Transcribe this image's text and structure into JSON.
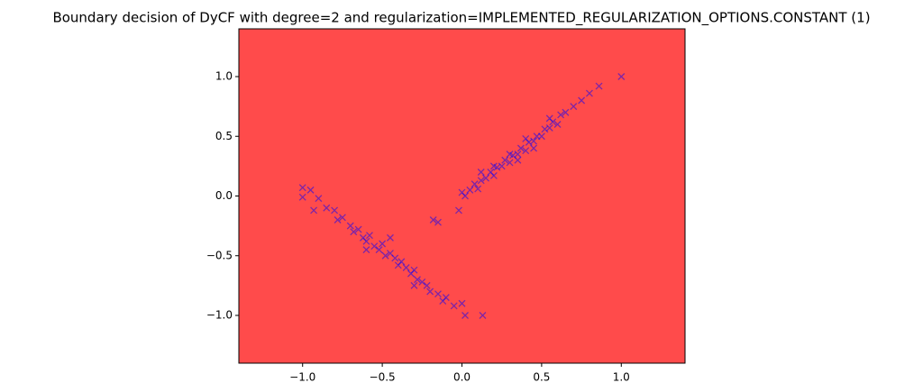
{
  "chart_data": {
    "type": "scatter",
    "title": "Boundary decision of DyCF with degree=2 and regularization=IMPLEMENTED_REGULARIZATION_OPTIONS.CONSTANT (1)",
    "background": "#ff4b4b",
    "marker": "x",
    "alpha": 0.5,
    "xlim": [
      -1.4,
      1.4
    ],
    "ylim": [
      -1.4,
      1.4
    ],
    "xticks": [
      {
        "value": -1,
        "label": "−1.0"
      },
      {
        "value": -0.5,
        "label": "−0.5"
      },
      {
        "value": 0,
        "label": "0.0"
      },
      0.5,
      {
        "value": 1,
        "label": "1.0"
      }
    ],
    "yticks": [
      {
        "value": -1,
        "label": "−1.0"
      },
      {
        "value": -0.5,
        "label": "−0.5"
      },
      {
        "value": 0,
        "label": "0.0"
      },
      0.5,
      {
        "value": 1,
        "label": "1.0"
      }
    ],
    "series": [
      {
        "color": "#0000ff",
        "x": [
          0.02,
          0.05,
          0.08,
          0.1,
          0.12,
          0.15,
          0.18,
          0.2,
          0.22,
          0.25,
          0.27,
          0.3,
          0.32,
          0.35,
          0.37,
          0.4,
          0.42,
          0.45,
          0.47,
          0.5,
          0.52,
          0.55,
          0.57,
          0.6,
          0.62,
          0.65,
          0.7,
          0.75,
          0.8,
          0.86,
          1.0,
          -0.02,
          0.12,
          0.35,
          0.45,
          0.3,
          0.55,
          0.2,
          0.4,
          0.0,
          -1.0,
          -1.0,
          -0.95,
          -0.93,
          -0.9,
          -0.85,
          -0.8,
          -0.78,
          -0.75,
          -0.7,
          -0.68,
          -0.65,
          -0.62,
          -0.6,
          -0.58,
          -0.55,
          -0.52,
          -0.5,
          -0.48,
          -0.45,
          -0.42,
          -0.4,
          -0.38,
          -0.35,
          -0.32,
          -0.3,
          -0.28,
          -0.25,
          -0.22,
          -0.2,
          -0.15,
          -0.12,
          -0.1,
          -0.05,
          0.0,
          0.02,
          0.13,
          -0.18,
          -0.15,
          -0.6,
          -0.45,
          -0.3
        ],
        "values": [
          0.0,
          0.05,
          0.1,
          0.06,
          0.13,
          0.15,
          0.2,
          0.17,
          0.24,
          0.25,
          0.3,
          0.28,
          0.34,
          0.35,
          0.4,
          0.38,
          0.45,
          0.46,
          0.5,
          0.5,
          0.56,
          0.57,
          0.62,
          0.6,
          0.68,
          0.7,
          0.75,
          0.8,
          0.86,
          0.92,
          1.0,
          -0.12,
          0.2,
          0.3,
          0.4,
          0.35,
          0.65,
          0.25,
          0.48,
          0.03,
          0.07,
          -0.01,
          0.05,
          -0.12,
          -0.02,
          -0.1,
          -0.12,
          -0.2,
          -0.18,
          -0.25,
          -0.3,
          -0.28,
          -0.35,
          -0.38,
          -0.33,
          -0.42,
          -0.45,
          -0.4,
          -0.5,
          -0.48,
          -0.52,
          -0.58,
          -0.55,
          -0.6,
          -0.65,
          -0.62,
          -0.7,
          -0.72,
          -0.75,
          -0.8,
          -0.82,
          -0.88,
          -0.85,
          -0.92,
          -0.9,
          -1.0,
          -1.0,
          -0.2,
          -0.22,
          -0.45,
          -0.35,
          -0.75
        ]
      }
    ]
  }
}
